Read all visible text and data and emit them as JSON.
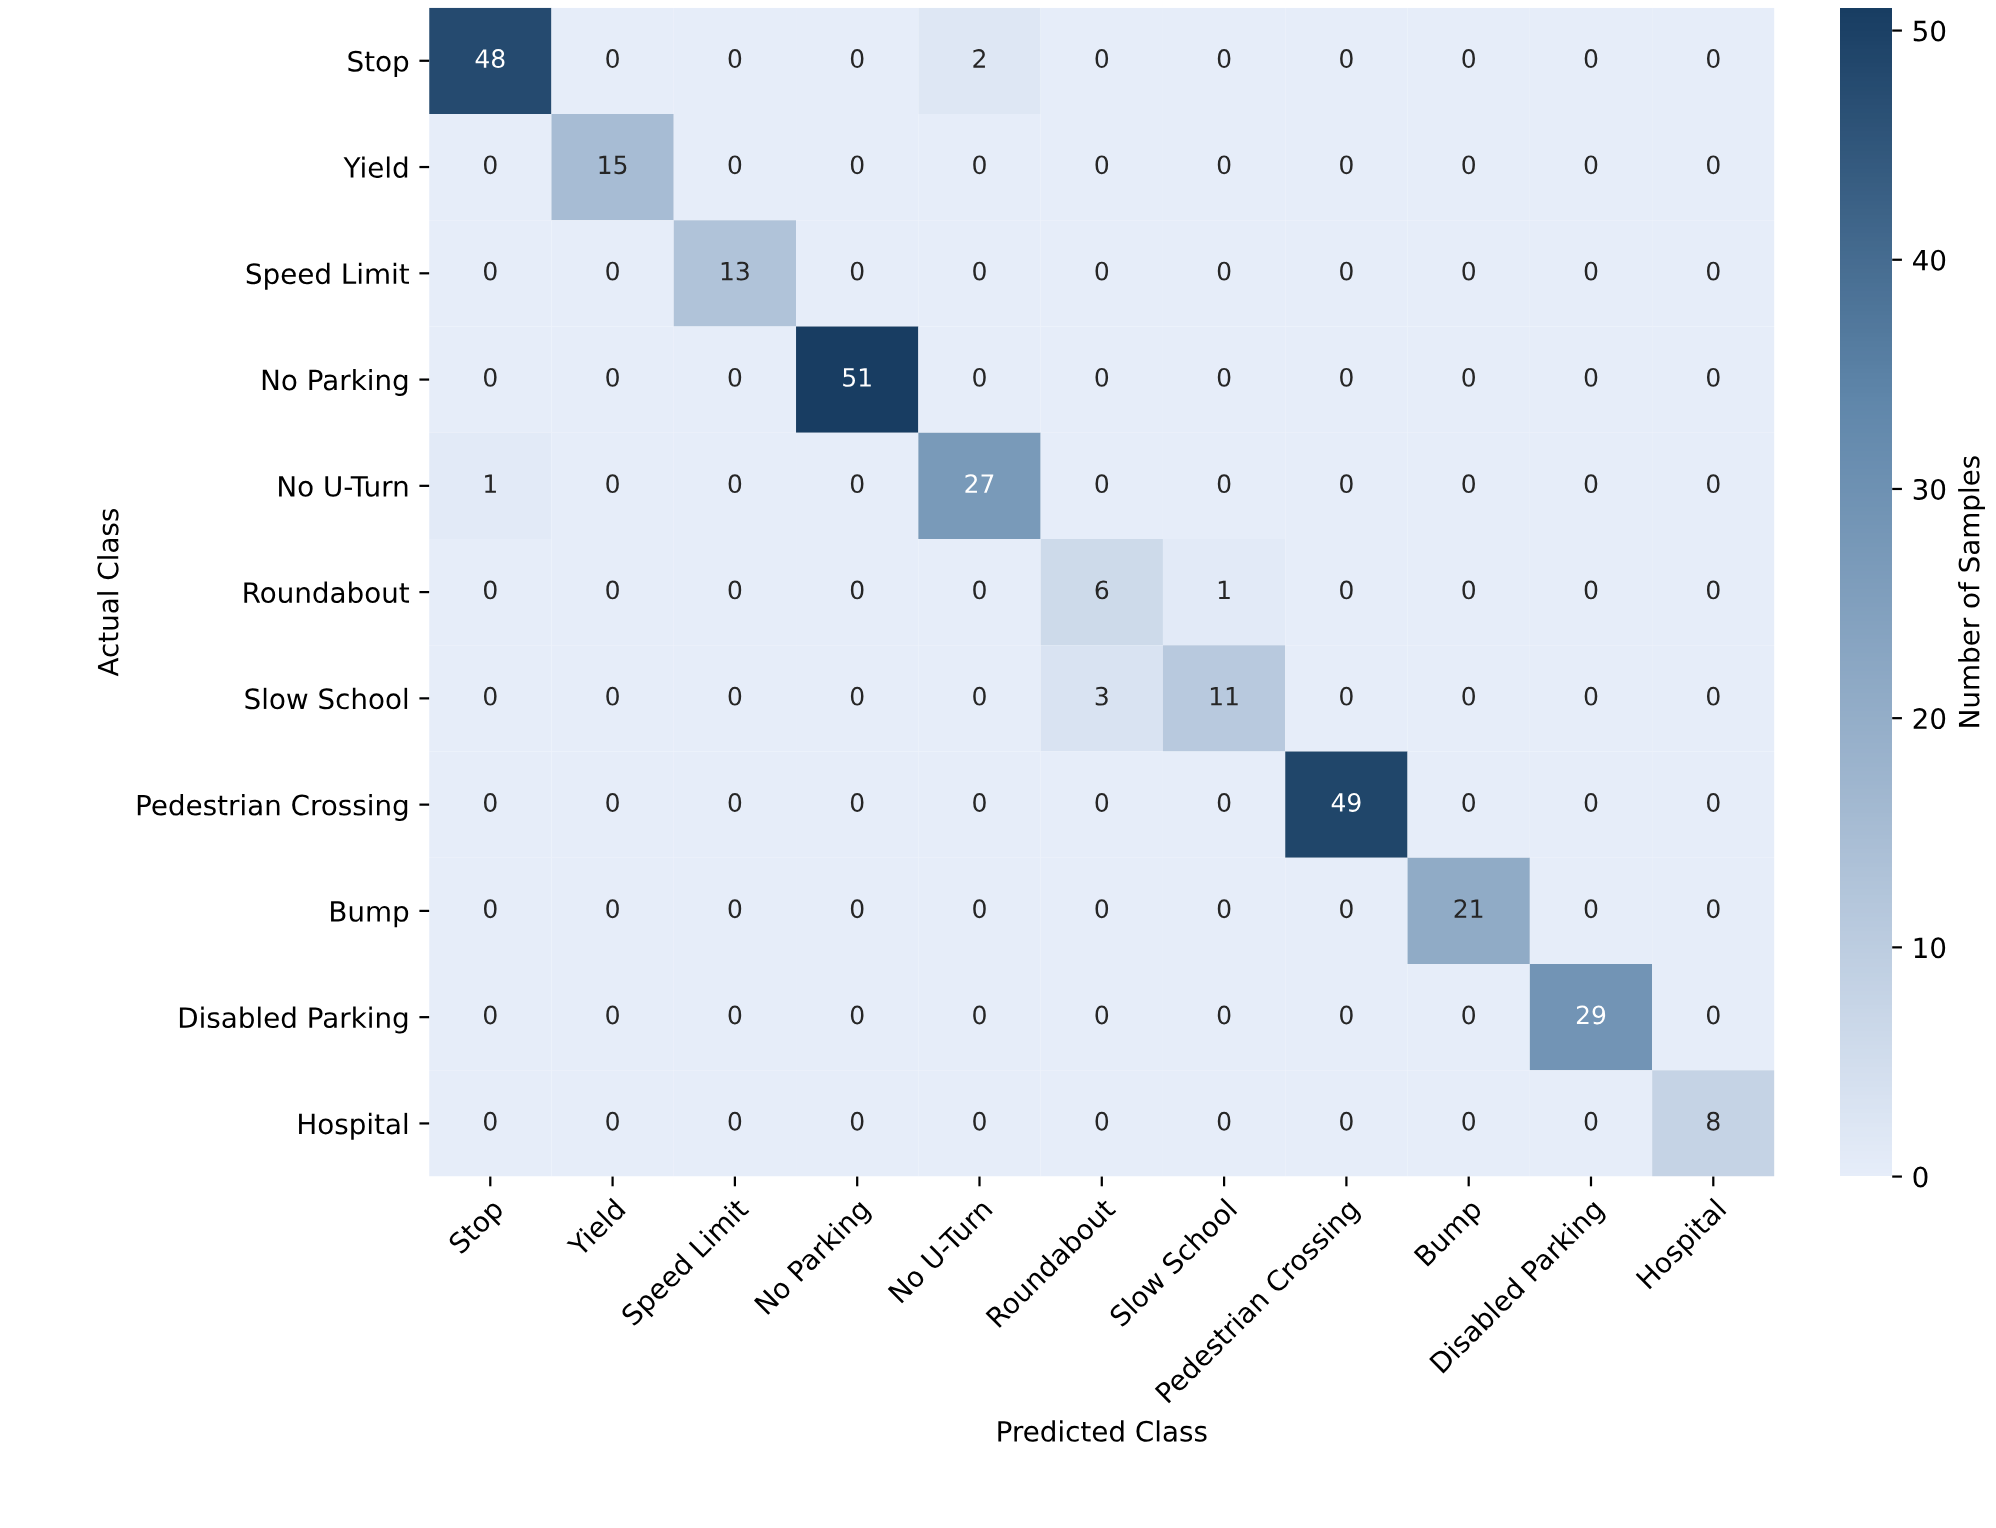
{
  "chart_data": {
    "type": "heatmap",
    "xlabel": "Predicted Class",
    "ylabel": "Actual Class",
    "clabel": "Number of Samples",
    "categories": [
      "Stop",
      "Yield",
      "Speed Limit",
      "No Parking",
      "No U-Turn",
      "Roundabout",
      "Slow School",
      "Pedestrian Crossing",
      "Bump",
      "Disabled Parking",
      "Hospital"
    ],
    "y_categories": [
      "Stop",
      "Yield",
      "Speed Limit",
      "No Parking",
      "No U-Turn",
      "Roundabout",
      "Slow School",
      "Pedestrian Crossing",
      "Bump",
      "Disabled Parking",
      "Hospital"
    ],
    "cells": [
      [
        48,
        0,
        0,
        0,
        2,
        0,
        0,
        0,
        0,
        0,
        0
      ],
      [
        0,
        15,
        0,
        0,
        0,
        0,
        0,
        0,
        0,
        0,
        0
      ],
      [
        0,
        0,
        13,
        0,
        0,
        0,
        0,
        0,
        0,
        0,
        0
      ],
      [
        0,
        0,
        0,
        51,
        0,
        0,
        0,
        0,
        0,
        0,
        0
      ],
      [
        1,
        0,
        0,
        0,
        27,
        0,
        0,
        0,
        0,
        0,
        0
      ],
      [
        0,
        0,
        0,
        0,
        0,
        6,
        1,
        0,
        0,
        0,
        0
      ],
      [
        0,
        0,
        0,
        0,
        0,
        3,
        11,
        0,
        0,
        0,
        0
      ],
      [
        0,
        0,
        0,
        0,
        0,
        0,
        0,
        49,
        0,
        0,
        0
      ],
      [
        0,
        0,
        0,
        0,
        0,
        0,
        0,
        0,
        21,
        0,
        0
      ],
      [
        0,
        0,
        0,
        0,
        0,
        0,
        0,
        0,
        0,
        29,
        0
      ],
      [
        0,
        0,
        0,
        0,
        0,
        0,
        0,
        0,
        0,
        0,
        8
      ]
    ],
    "clim": [
      0,
      51
    ],
    "cticks": [
      0,
      10,
      20,
      30,
      40,
      50
    ],
    "data_labels": true
  }
}
